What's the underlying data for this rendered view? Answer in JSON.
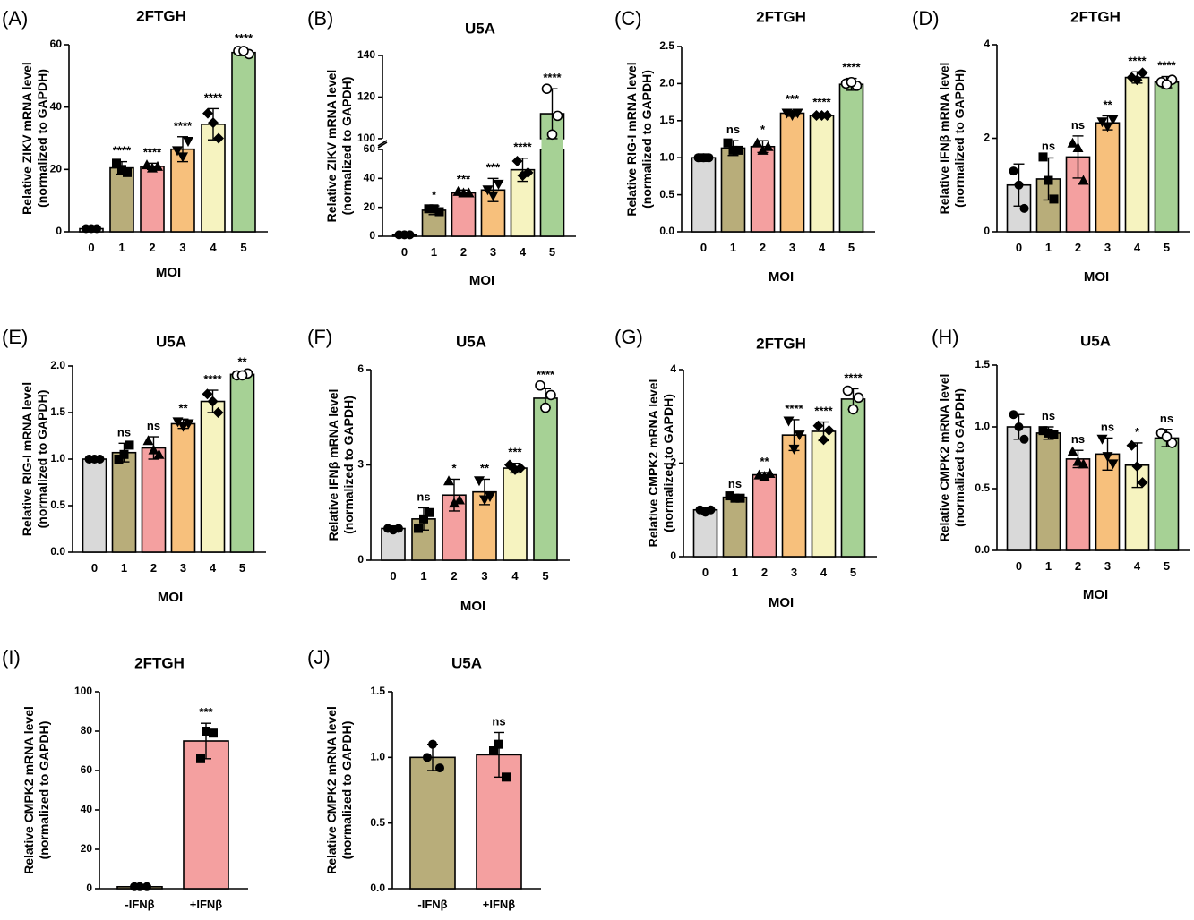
{
  "marker_shapes": [
    "circle",
    "square",
    "triangle-up",
    "triangle-down",
    "diamond",
    "open-circle"
  ],
  "chart_data": [
    {
      "panel": "(A)",
      "title": "2FTGH",
      "type": "bar",
      "ylabel": [
        "Relative ZIKV mRNA level",
        "(normalized to GAPDH)"
      ],
      "xlabel": "MOI",
      "categories": [
        "0",
        "1",
        "2",
        "3",
        "4",
        "5"
      ],
      "values": [
        1,
        20.5,
        21,
        26.5,
        34.5,
        57.5
      ],
      "errors": [
        0.3,
        2,
        1,
        4,
        5,
        1
      ],
      "points": [
        [
          1,
          1,
          1
        ],
        [
          22,
          19,
          20
        ],
        [
          21.5,
          21,
          20.5
        ],
        [
          26,
          29,
          24
        ],
        [
          38,
          30,
          35
        ],
        [
          58,
          57,
          58
        ]
      ],
      "significance": [
        "",
        "****",
        "****",
        "****",
        "****",
        "****"
      ],
      "colors": [
        "#d9d9d9",
        "#b8ad7a",
        "#f4a0a0",
        "#f7c07c",
        "#f6f3c0",
        "#a6d195"
      ],
      "ylim": [
        0,
        60
      ],
      "yticks": [
        0,
        20,
        40,
        60
      ],
      "ytick_labels": [
        "0",
        "20",
        "40",
        "60"
      ]
    },
    {
      "panel": "(B)",
      "title": "U5A",
      "type": "bar",
      "ylabel": [
        "Relative ZIKV mRNA level",
        "(normalized to GAPDH)"
      ],
      "xlabel": "MOI",
      "categories": [
        "0",
        "1",
        "2",
        "3",
        "4",
        "5"
      ],
      "values": [
        1,
        18,
        30,
        32,
        46,
        112
      ],
      "errors": [
        0.3,
        3,
        2,
        8,
        8,
        12
      ],
      "points": [
        [
          1,
          1,
          1
        ],
        [
          19,
          17,
          19
        ],
        [
          31,
          30,
          30
        ],
        [
          32,
          36,
          28
        ],
        [
          52,
          44,
          42
        ],
        [
          124,
          111,
          102
        ]
      ],
      "significance": [
        "",
        "*",
        "***",
        "***",
        "****",
        "****"
      ],
      "colors": [
        "#d9d9d9",
        "#b8ad7a",
        "#f4a0a0",
        "#f7c07c",
        "#f6f3c0",
        "#a6d195"
      ],
      "ylim": [
        0,
        140
      ],
      "axis_break": [
        60,
        100
      ],
      "yticks": [
        0,
        20,
        40,
        60,
        100,
        120,
        140
      ],
      "ytick_labels": [
        "0",
        "20",
        "40",
        "60",
        "100",
        "120",
        "140"
      ]
    },
    {
      "panel": "(C)",
      "title": "2FTGH",
      "type": "bar",
      "ylabel": [
        "Relative RIG-I mRNA level",
        "(normalized to GAPDH)"
      ],
      "xlabel": "MOI",
      "categories": [
        "0",
        "1",
        "2",
        "3",
        "4",
        "5"
      ],
      "values": [
        1.0,
        1.13,
        1.15,
        1.6,
        1.57,
        1.99
      ],
      "errors": [
        0.05,
        0.1,
        0.08,
        0.04,
        0.03,
        0.08
      ],
      "points": [
        [
          1.0,
          1.0,
          1.0
        ],
        [
          1.2,
          1.1,
          1.1
        ],
        [
          1.2,
          1.15,
          1.1
        ],
        [
          1.6,
          1.6,
          1.57
        ],
        [
          1.57,
          1.57,
          1.57
        ],
        [
          2.0,
          1.97,
          2.02
        ]
      ],
      "significance": [
        "",
        "ns",
        "*",
        "***",
        "****",
        "****"
      ],
      "colors": [
        "#d9d9d9",
        "#b8ad7a",
        "#f4a0a0",
        "#f7c07c",
        "#f6f3c0",
        "#a6d195"
      ],
      "ylim": [
        0,
        2.5
      ],
      "yticks": [
        0,
        0.5,
        1.0,
        1.5,
        2.0,
        2.5
      ],
      "ytick_labels": [
        "0.0",
        "0.5",
        "1.0",
        "1.5",
        "2.0",
        "2.5"
      ]
    },
    {
      "panel": "(D)",
      "title": "2FTGH",
      "type": "bar",
      "ylabel": [
        "Relative IFNβ mRNA level",
        "(normalized to GAPDH)"
      ],
      "xlabel": "MOI",
      "categories": [
        "0",
        "1",
        "2",
        "3",
        "4",
        "5"
      ],
      "values": [
        1.0,
        1.13,
        1.6,
        2.33,
        3.3,
        3.2
      ],
      "errors": [
        0.45,
        0.45,
        0.45,
        0.15,
        0.12,
        0.12
      ],
      "points": [
        [
          1.3,
          0.5,
          1.0
        ],
        [
          1.6,
          0.7,
          1.1
        ],
        [
          1.9,
          1.1,
          1.8
        ],
        [
          2.35,
          2.4,
          2.25
        ],
        [
          3.3,
          3.4,
          3.25
        ],
        [
          3.2,
          3.25,
          3.15
        ]
      ],
      "significance": [
        "",
        "ns",
        "ns",
        "**",
        "****",
        "****"
      ],
      "colors": [
        "#d9d9d9",
        "#b8ad7a",
        "#f4a0a0",
        "#f7c07c",
        "#f6f3c0",
        "#a6d195"
      ],
      "ylim": [
        0,
        4
      ],
      "yticks": [
        0,
        2,
        4
      ],
      "ytick_labels": [
        "0",
        "2",
        "4"
      ]
    },
    {
      "panel": "(E)",
      "title": "U5A",
      "type": "bar",
      "ylabel": [
        "Relative RIG-I mRNA level",
        "(normalized to GAPDH)"
      ],
      "xlabel": "MOI",
      "categories": [
        "0",
        "1",
        "2",
        "3",
        "4",
        "5"
      ],
      "values": [
        1.0,
        1.07,
        1.12,
        1.38,
        1.62,
        1.91
      ],
      "errors": [
        0.02,
        0.1,
        0.12,
        0.05,
        0.12,
        0.02
      ],
      "points": [
        [
          1.0,
          1.0,
          1.0
        ],
        [
          1.0,
          1.15,
          1.05
        ],
        [
          1.2,
          1.05,
          1.1
        ],
        [
          1.4,
          1.38,
          1.35
        ],
        [
          1.7,
          1.5,
          1.62
        ],
        [
          1.9,
          1.92,
          1.9
        ]
      ],
      "significance": [
        "",
        "ns",
        "ns",
        "**",
        "****",
        "**"
      ],
      "colors": [
        "#d9d9d9",
        "#b8ad7a",
        "#f4a0a0",
        "#f7c07c",
        "#f6f3c0",
        "#a6d195"
      ],
      "ylim": [
        0,
        2.0
      ],
      "yticks": [
        0,
        0.5,
        1.0,
        1.5,
        2.0
      ],
      "ytick_labels": [
        "0.0",
        "0.5",
        "1.0",
        "1.5",
        "2.0"
      ]
    },
    {
      "panel": "(F)",
      "title": "U5A",
      "type": "bar",
      "ylabel": [
        "Relative IFNβ mRNA level",
        "(normalized to GAPDH)"
      ],
      "xlabel": "MOI",
      "categories": [
        "0",
        "1",
        "2",
        "3",
        "4",
        "5"
      ],
      "values": [
        1.0,
        1.3,
        2.05,
        2.15,
        2.9,
        5.1
      ],
      "errors": [
        0.08,
        0.35,
        0.5,
        0.4,
        0.15,
        0.3
      ],
      "points": [
        [
          1.0,
          1.0,
          0.95
        ],
        [
          1.0,
          1.5,
          1.3
        ],
        [
          2.5,
          1.9,
          1.8
        ],
        [
          2.5,
          2.0,
          1.9
        ],
        [
          3.0,
          2.9,
          2.85
        ],
        [
          5.5,
          5.2,
          4.8
        ]
      ],
      "significance": [
        "",
        "ns",
        "*",
        "**",
        "***",
        "****"
      ],
      "colors": [
        "#d9d9d9",
        "#b8ad7a",
        "#f4a0a0",
        "#f7c07c",
        "#f6f3c0",
        "#a6d195"
      ],
      "ylim": [
        0,
        6
      ],
      "yticks": [
        0,
        3,
        6
      ],
      "ytick_labels": [
        "0",
        "3",
        "6"
      ]
    },
    {
      "panel": "(G)",
      "title": "2FTGH",
      "type": "bar",
      "ylabel": [
        "Relative CMPK2 mRNA level",
        "(normalized to GAPDH)"
      ],
      "xlabel": "MOI",
      "categories": [
        "0",
        "1",
        "2",
        "3",
        "4",
        "5"
      ],
      "values": [
        1.0,
        1.27,
        1.75,
        2.6,
        2.68,
        3.37
      ],
      "errors": [
        0.05,
        0.05,
        0.05,
        0.33,
        0.2,
        0.22
      ],
      "points": [
        [
          1.0,
          1.0,
          0.95
        ],
        [
          1.3,
          1.25,
          1.25
        ],
        [
          1.75,
          1.78,
          1.72
        ],
        [
          2.9,
          2.6,
          2.3
        ],
        [
          2.8,
          2.7,
          2.5
        ],
        [
          3.55,
          3.4,
          3.15
        ]
      ],
      "significance": [
        "",
        "ns",
        "**",
        "****",
        "****",
        "****"
      ],
      "colors": [
        "#d9d9d9",
        "#b8ad7a",
        "#f4a0a0",
        "#f7c07c",
        "#f6f3c0",
        "#a6d195"
      ],
      "ylim": [
        0,
        4
      ],
      "yticks": [
        0,
        2,
        4
      ],
      "ytick_labels": [
        "0",
        "2",
        "4"
      ]
    },
    {
      "panel": "(H)",
      "title": "U5A",
      "type": "bar",
      "ylabel": [
        "Relative CMPK2 mRNA level",
        "(normalized to GAPDH)"
      ],
      "xlabel": "MOI",
      "categories": [
        "0",
        "1",
        "2",
        "3",
        "4",
        "5"
      ],
      "values": [
        1.0,
        0.95,
        0.74,
        0.78,
        0.69,
        0.91
      ],
      "errors": [
        0.1,
        0.05,
        0.07,
        0.13,
        0.18,
        0.07
      ],
      "points": [
        [
          1.1,
          0.9,
          1.0
        ],
        [
          0.97,
          0.94,
          0.95
        ],
        [
          0.8,
          0.7,
          0.72
        ],
        [
          0.9,
          0.7,
          0.76
        ],
        [
          0.85,
          0.55,
          0.68
        ],
        [
          0.95,
          0.87,
          0.92
        ]
      ],
      "significance": [
        "",
        "ns",
        "ns",
        "ns",
        "*",
        "ns"
      ],
      "colors": [
        "#d9d9d9",
        "#b8ad7a",
        "#f4a0a0",
        "#f7c07c",
        "#f6f3c0",
        "#a6d195"
      ],
      "ylim": [
        0,
        1.5
      ],
      "yticks": [
        0,
        0.5,
        1.0,
        1.5
      ],
      "ytick_labels": [
        "0.0",
        "0.5",
        "1.0",
        "1.5"
      ]
    },
    {
      "panel": "(I)",
      "title": "2FTGH",
      "type": "bar",
      "ylabel": [
        "Relative CMPK2 mRNA level",
        "(normalized to GAPDH)"
      ],
      "xlabel": "",
      "categories": [
        "-IFNβ",
        "+IFNβ"
      ],
      "values": [
        1,
        75
      ],
      "errors": [
        0.5,
        9
      ],
      "points": [
        [
          1,
          1,
          1
        ],
        [
          80,
          79,
          66
        ]
      ],
      "significance": [
        "",
        "***"
      ],
      "colors": [
        "#b8ad7a",
        "#f4a0a0"
      ],
      "ylim": [
        0,
        100
      ],
      "yticks": [
        0,
        20,
        40,
        60,
        80,
        100
      ],
      "ytick_labels": [
        "0",
        "20",
        "40",
        "60",
        "80",
        "100"
      ]
    },
    {
      "panel": "(J)",
      "title": "U5A",
      "type": "bar",
      "ylabel": [
        "Relative CMPK2 mRNA level",
        "(normalized to GAPDH)"
      ],
      "xlabel": "",
      "categories": [
        "-IFNβ",
        "+IFNβ"
      ],
      "values": [
        1.0,
        1.02
      ],
      "errors": [
        0.1,
        0.17
      ],
      "points": [
        [
          1.1,
          0.92,
          1.0
        ],
        [
          1.1,
          0.85,
          1.05
        ]
      ],
      "significance": [
        "",
        "ns"
      ],
      "colors": [
        "#b8ad7a",
        "#f4a0a0"
      ],
      "ylim": [
        0,
        1.5
      ],
      "yticks": [
        0,
        0.5,
        1.0,
        1.5
      ],
      "ytick_labels": [
        "0.0",
        "0.5",
        "1.0",
        "1.5"
      ]
    }
  ]
}
